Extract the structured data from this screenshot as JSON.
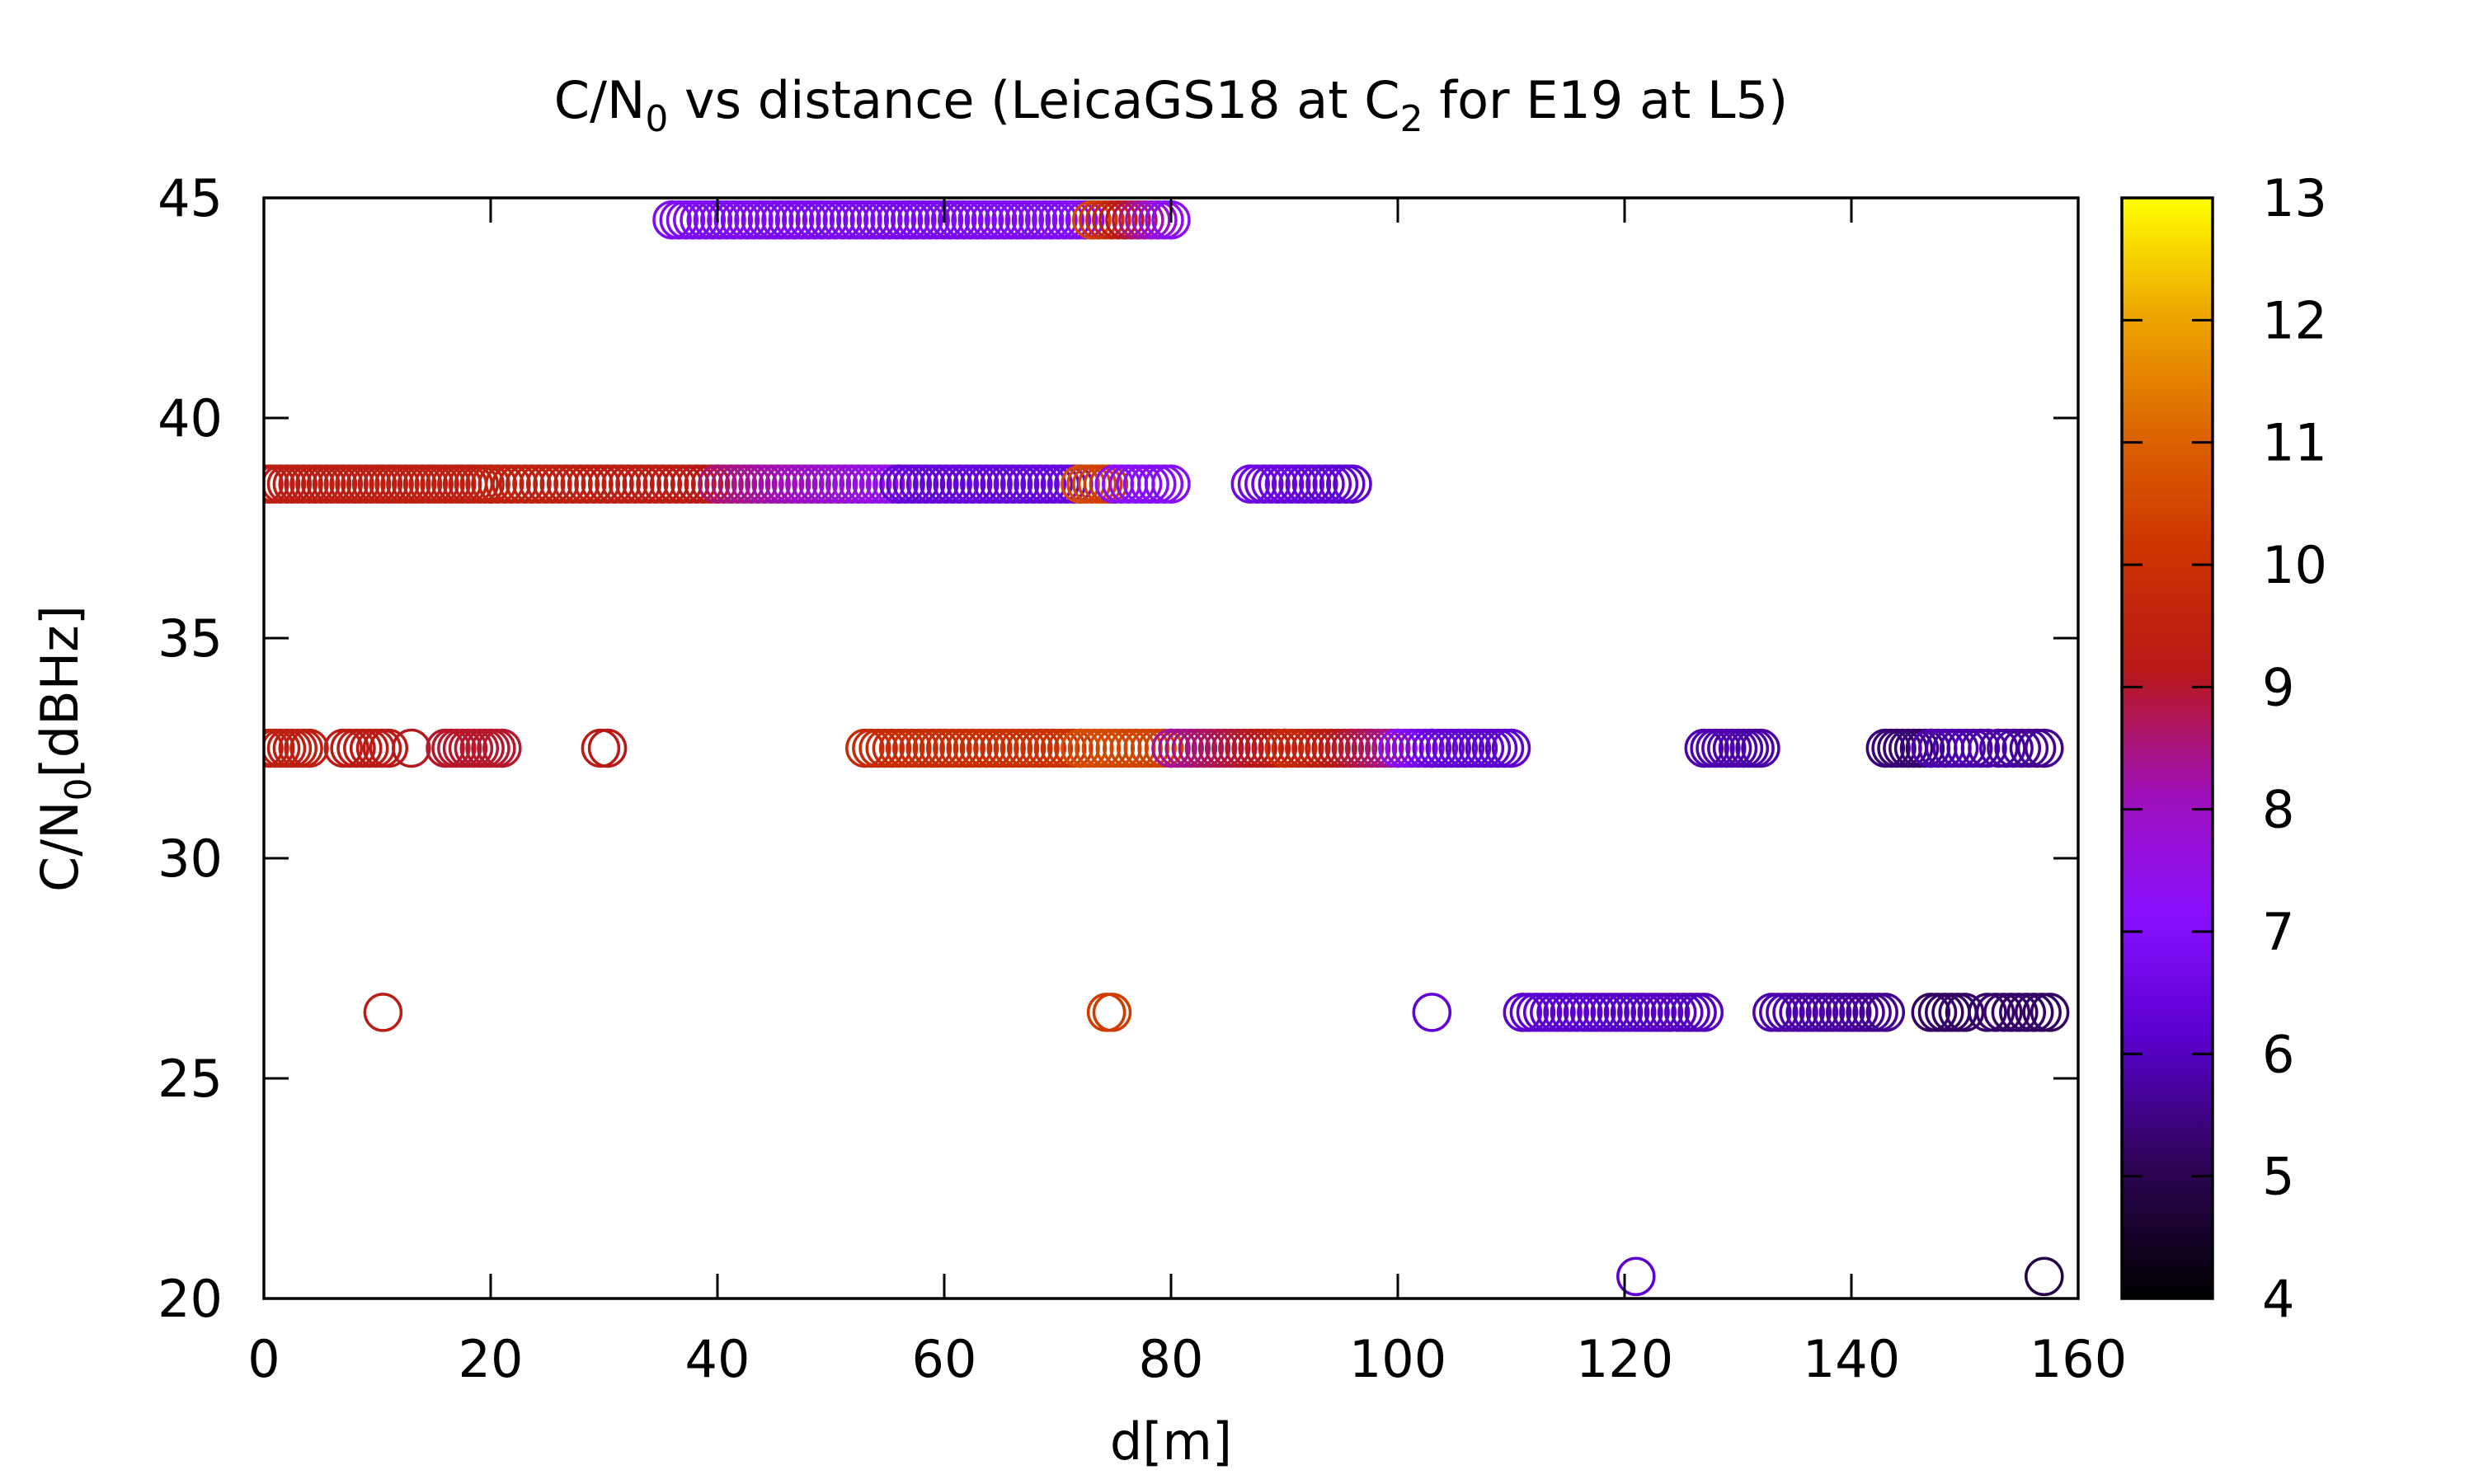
{
  "chart_data": {
    "type": "scatter",
    "title": {
      "prefix": "C/N",
      "sub1": "0",
      "middle": " vs distance (LeicaGS18 at C",
      "sub2": "2",
      "suffix": " for E19 at L5)"
    },
    "xlabel": "d[m]",
    "ylabel": {
      "prefix": "C/N",
      "sub": "0",
      "suffix": "[dBHz]"
    },
    "xlim": [
      0,
      160
    ],
    "ylim": [
      20,
      45
    ],
    "xticks": [
      "0",
      "20",
      "40",
      "60",
      "80",
      "100",
      "120",
      "140",
      "160"
    ],
    "yticks": [
      "20",
      "25",
      "30",
      "35",
      "40",
      "45"
    ],
    "colorbar": {
      "range": [
        4,
        13
      ],
      "ticks": [
        "4",
        "5",
        "6",
        "7",
        "8",
        "9",
        "10",
        "11",
        "12",
        "13"
      ],
      "palette": "gnuplot black-purple-red-orange-yellow"
    },
    "marker": "open-circle",
    "grid": false,
    "segments": [
      {
        "y": 44.5,
        "x0": 36,
        "x1": 57,
        "step": 0.6,
        "c0": 6.9,
        "c1": 6.8
      },
      {
        "y": 44.5,
        "x0": 57,
        "x1": 73,
        "step": 0.6,
        "c0": 6.8,
        "c1": 7.0
      },
      {
        "y": 44.5,
        "x0": 73,
        "x1": 80,
        "step": 0.6,
        "c0": 10.5,
        "c1": 7.1
      },
      {
        "y": 38.5,
        "x0": 0,
        "x1": 20,
        "step": 0.5,
        "c0": 9.3,
        "c1": 9.4
      },
      {
        "y": 38.5,
        "x0": 20,
        "x1": 40,
        "step": 0.6,
        "c0": 9.5,
        "c1": 9.2
      },
      {
        "y": 38.5,
        "x0": 40,
        "x1": 56,
        "step": 0.6,
        "c0": 8.6,
        "c1": 7.4
      },
      {
        "y": 38.5,
        "x0": 56,
        "x1": 72,
        "step": 0.6,
        "c0": 6.3,
        "c1": 6.4
      },
      {
        "y": 38.5,
        "x0": 72,
        "x1": 75,
        "step": 0.5,
        "c0": 10.6,
        "c1": 10.2
      },
      {
        "y": 38.5,
        "x0": 75,
        "x1": 80,
        "step": 0.6,
        "c0": 7.2,
        "c1": 7.0
      },
      {
        "y": 38.5,
        "x0": 87,
        "x1": 96,
        "step": 0.6,
        "c0": 6.6,
        "c1": 6.2
      },
      {
        "y": 32.5,
        "x0": 0,
        "x1": 4,
        "step": 0.5,
        "c0": 9.4,
        "c1": 9.4
      },
      {
        "y": 32.5,
        "x0": 7,
        "x1": 11,
        "step": 0.6,
        "c0": 9.3,
        "c1": 9.2
      },
      {
        "y": 32.5,
        "x0": 13,
        "x1": 13,
        "step": 1,
        "c0": 9.1,
        "c1": 9.1
      },
      {
        "y": 32.5,
        "x0": 16,
        "x1": 21,
        "step": 0.5,
        "c0": 9.0,
        "c1": 9.0
      },
      {
        "y": 32.5,
        "x0": 29.7,
        "x1": 30.3,
        "step": 0.6,
        "c0": 9.2,
        "c1": 9.2
      },
      {
        "y": 32.5,
        "x0": 53,
        "x1": 72,
        "step": 0.6,
        "c0": 9.8,
        "c1": 10.1
      },
      {
        "y": 32.5,
        "x0": 72,
        "x1": 80,
        "step": 0.6,
        "c0": 10.6,
        "c1": 10.4
      },
      {
        "y": 32.5,
        "x0": 80,
        "x1": 90,
        "step": 0.6,
        "c0": 8.3,
        "c1": 9.4
      },
      {
        "y": 32.5,
        "x0": 90,
        "x1": 100,
        "step": 0.6,
        "c0": 9.9,
        "c1": 8.3
      },
      {
        "y": 32.5,
        "x0": 100,
        "x1": 103,
        "step": 0.6,
        "c0": 7.2,
        "c1": 6.5
      },
      {
        "y": 32.5,
        "x0": 103,
        "x1": 110,
        "step": 0.6,
        "c0": 6.4,
        "c1": 6.2
      },
      {
        "y": 32.5,
        "x0": 127,
        "x1": 132,
        "step": 0.5,
        "c0": 5.9,
        "c1": 5.8
      },
      {
        "y": 32.5,
        "x0": 143,
        "x1": 147,
        "step": 0.5,
        "c0": 5.4,
        "c1": 5.3
      },
      {
        "y": 32.5,
        "x0": 147,
        "x1": 152,
        "step": 0.6,
        "c0": 5.9,
        "c1": 5.8
      },
      {
        "y": 32.5,
        "x0": 153,
        "x1": 157,
        "step": 0.7,
        "c0": 5.8,
        "c1": 5.6
      },
      {
        "y": 26.5,
        "x0": 10.5,
        "x1": 10.5,
        "step": 1,
        "c0": 9.3,
        "c1": 9.3
      },
      {
        "y": 26.5,
        "x0": 74.3,
        "x1": 74.8,
        "step": 0.5,
        "c0": 10.3,
        "c1": 10.3
      },
      {
        "y": 26.5,
        "x0": 103,
        "x1": 103,
        "step": 1,
        "c0": 6.3,
        "c1": 6.3
      },
      {
        "y": 26.5,
        "x0": 111,
        "x1": 127,
        "step": 0.6,
        "c0": 6.2,
        "c1": 6.0
      },
      {
        "y": 26.5,
        "x0": 133,
        "x1": 143,
        "step": 0.6,
        "c0": 5.9,
        "c1": 5.6
      },
      {
        "y": 26.5,
        "x0": 147,
        "x1": 150,
        "step": 0.6,
        "c0": 5.2,
        "c1": 5.2
      },
      {
        "y": 26.5,
        "x0": 152,
        "x1": 157.5,
        "step": 0.7,
        "c0": 5.3,
        "c1": 5.2
      },
      {
        "y": 20.5,
        "x0": 121,
        "x1": 121,
        "step": 1,
        "c0": 6.2,
        "c1": 6.2
      },
      {
        "y": 20.5,
        "x0": 157,
        "x1": 157,
        "step": 1,
        "c0": 4.9,
        "c1": 4.9
      }
    ]
  }
}
